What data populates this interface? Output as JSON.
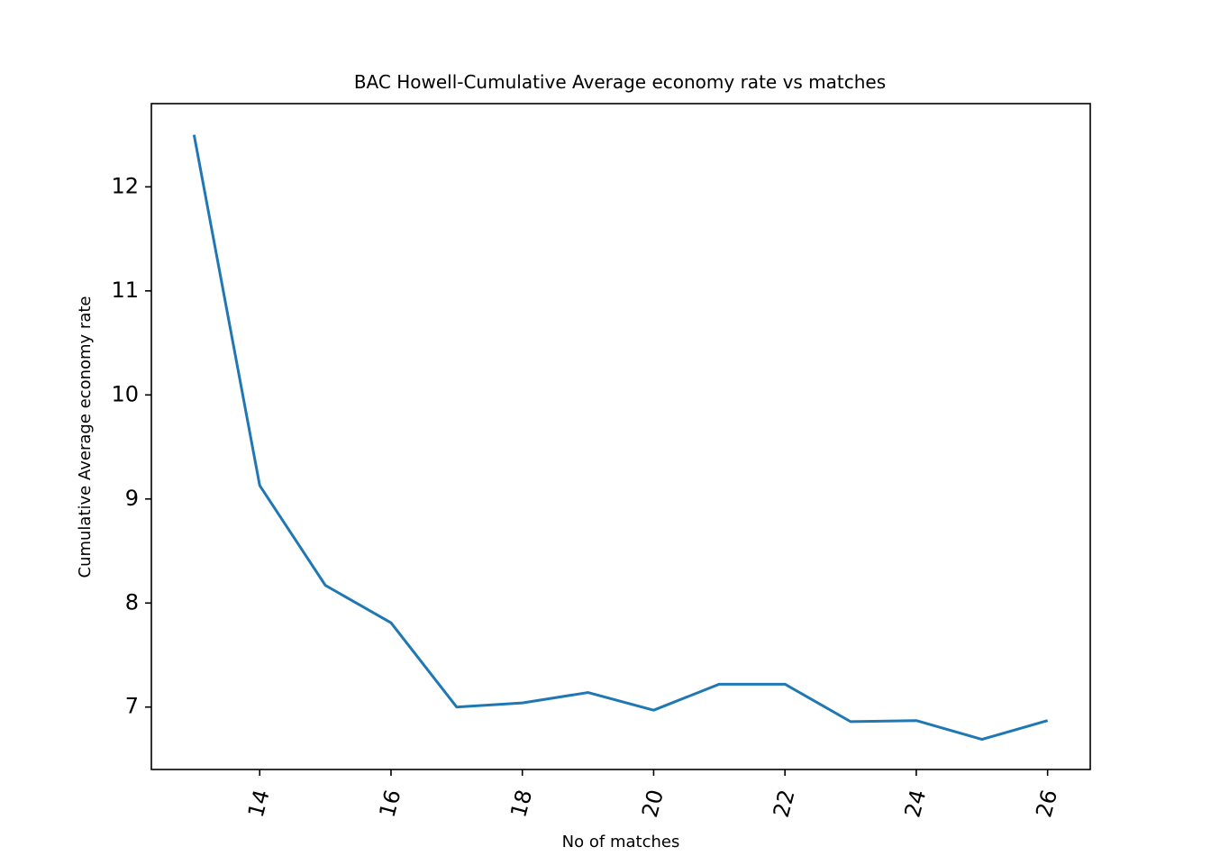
{
  "chart_data": {
    "type": "line",
    "title": "BAC Howell-Cumulative Average economy rate vs matches",
    "xlabel": "No of matches",
    "ylabel": "Cumulative Average economy rate",
    "xlim": [
      12.35,
      26.65
    ],
    "ylim": [
      6.4,
      12.8
    ],
    "xticks": [
      14,
      16,
      18,
      20,
      22,
      24,
      26
    ],
    "yticks": [
      7,
      8,
      9,
      10,
      11,
      12
    ],
    "grid": false,
    "line_color": "#1f77b4",
    "series": [
      {
        "x": [
          13,
          14,
          15,
          16,
          17,
          18,
          19,
          20,
          21,
          22,
          23,
          24,
          25,
          26
        ],
        "values": [
          12.5,
          9.13,
          8.17,
          7.81,
          7.0,
          7.04,
          7.14,
          6.97,
          7.22,
          7.22,
          6.86,
          6.87,
          6.69,
          6.87
        ]
      }
    ]
  }
}
